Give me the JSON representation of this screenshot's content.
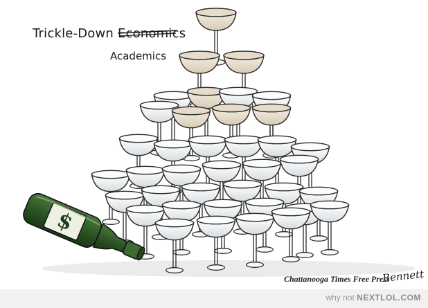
{
  "cartoon": {
    "title_prefix": "Trickle-Down ",
    "title_struck": "Economics",
    "replacement_word": "Academics",
    "credit": "Chattanooga Times Free Press",
    "signature": "Bennett",
    "bottle_label_symbol": "$"
  },
  "footer": {
    "prefix": "why not",
    "brand": "NEXTLOL.COM"
  },
  "colors": {
    "bottle": "#2f5a26",
    "bottle_dark": "#1e3d18",
    "champagne": "#e7dccb",
    "glass_outline": "#2a2a2a",
    "footer_bg": "#f1f1f1"
  }
}
